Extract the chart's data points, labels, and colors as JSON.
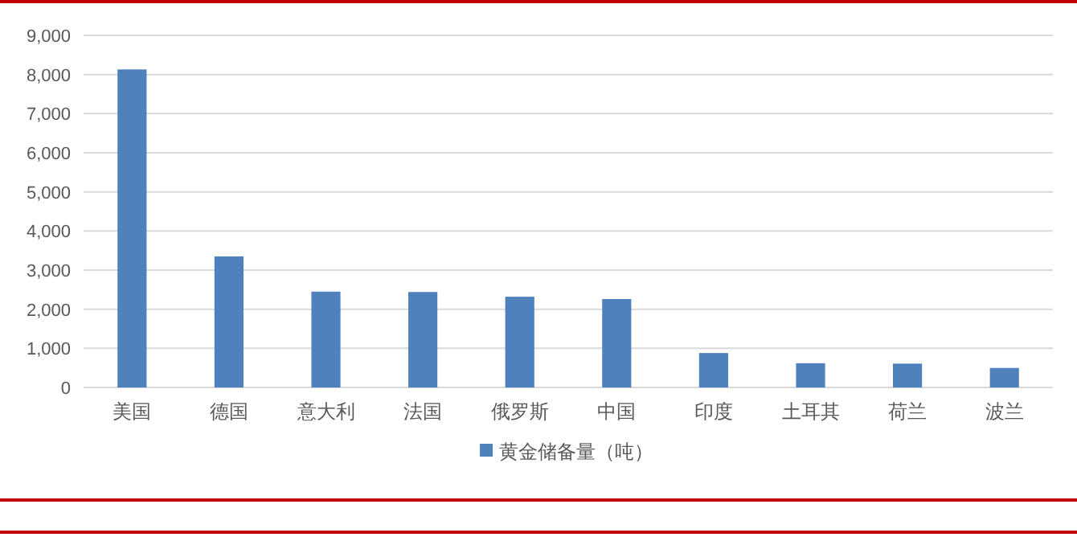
{
  "chart_data": {
    "type": "bar",
    "categories": [
      "美国",
      "德国",
      "意大利",
      "法国",
      "俄罗斯",
      "中国",
      "印度",
      "土耳其",
      "荷兰",
      "波兰"
    ],
    "series": [
      {
        "name": "黄金储备量（吨）",
        "color": "#4f81bd",
        "values": [
          8130,
          3350,
          2450,
          2440,
          2320,
          2260,
          880,
          620,
          610,
          500
        ]
      }
    ],
    "ylim": [
      0,
      9000
    ],
    "yticks": [
      {
        "value": 0,
        "label": "0"
      },
      {
        "value": 1000,
        "label": "1,000"
      },
      {
        "value": 2000,
        "label": "2,000"
      },
      {
        "value": 3000,
        "label": "3,000"
      },
      {
        "value": 4000,
        "label": "4,000"
      },
      {
        "value": 5000,
        "label": "5,000"
      },
      {
        "value": 6000,
        "label": "6,000"
      },
      {
        "value": 7000,
        "label": "7,000"
      },
      {
        "value": 8000,
        "label": "8,000"
      },
      {
        "value": 9000,
        "label": "9,000"
      }
    ],
    "grid": "y",
    "legend": "bottom"
  }
}
